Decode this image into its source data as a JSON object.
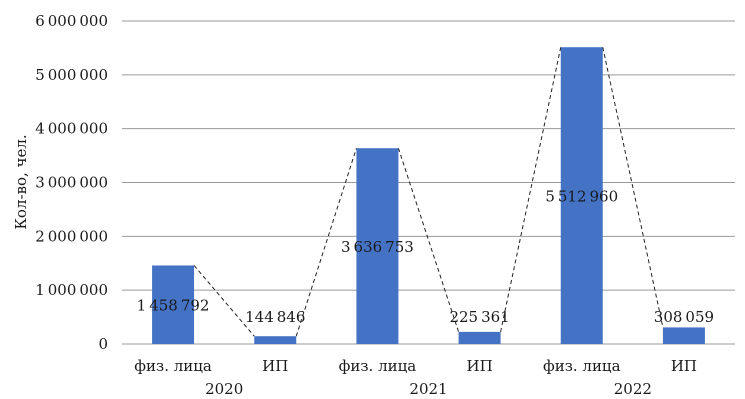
{
  "chart_data": {
    "type": "bar",
    "title": "",
    "xlabel": "",
    "ylabel": "Кол-во, чел.",
    "ylim": [
      0,
      6000000
    ],
    "yticks": [
      0,
      1000000,
      2000000,
      3000000,
      4000000,
      5000000,
      6000000
    ],
    "ytick_labels": [
      "0",
      "1000000",
      "2000000",
      "3000000",
      "4000000",
      "5000000",
      "6000000"
    ],
    "groups": [
      {
        "label": "2020",
        "categories": [
          "физ. лица",
          "ИП"
        ],
        "values": [
          1458792,
          144846
        ],
        "data_labels": [
          "1458792",
          "144846"
        ]
      },
      {
        "label": "2021",
        "categories": [
          "физ. лица",
          "ИП"
        ],
        "values": [
          3636753,
          225361
        ],
        "data_labels": [
          "3636753",
          "225361"
        ]
      },
      {
        "label": "2022",
        "categories": [
          "физ. лица",
          "ИП"
        ],
        "values": [
          5512960,
          308059
        ],
        "data_labels": [
          "5512960",
          "308059"
        ]
      }
    ],
    "connector_line": "dashed",
    "bar_color": "#4472c4",
    "grid": true,
    "legend": "none"
  }
}
